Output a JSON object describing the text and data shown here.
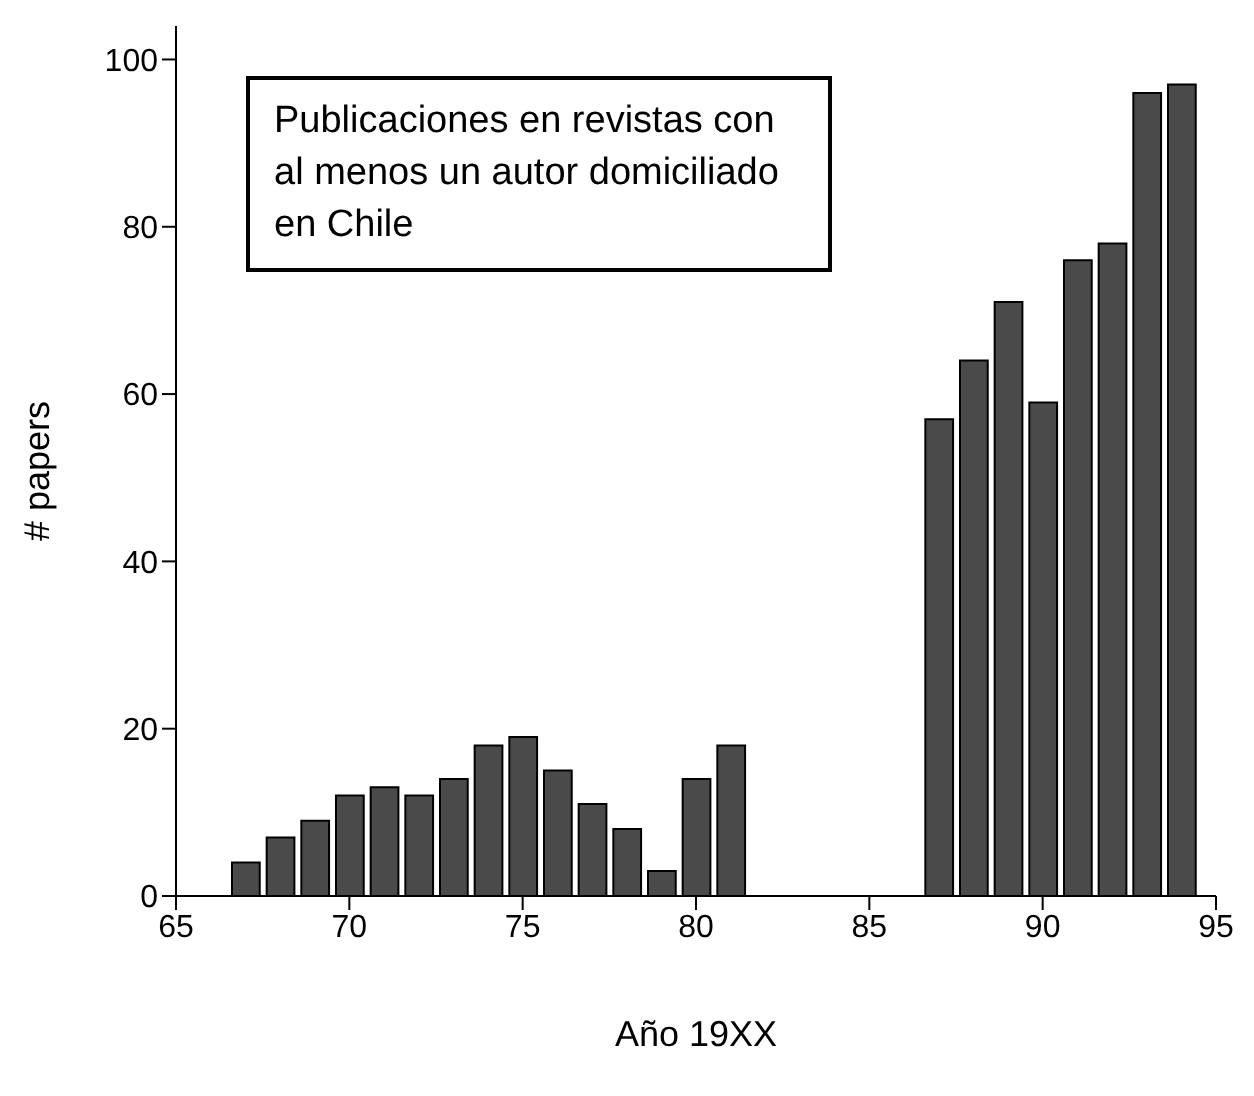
{
  "chart_data": {
    "type": "bar",
    "xlabel": "Año 19XX",
    "ylabel": "# papers",
    "annotations": [
      "Publicaciones en revistas con al menos un autor domiciliado en Chile"
    ],
    "x": [
      67,
      68,
      69,
      70,
      71,
      72,
      73,
      74,
      75,
      76,
      77,
      78,
      79,
      80,
      81,
      87,
      88,
      89,
      90,
      91,
      92,
      93,
      94
    ],
    "values": [
      4,
      7,
      9,
      12,
      13,
      12,
      14,
      18,
      19,
      15,
      11,
      8,
      3,
      14,
      18,
      57,
      64,
      71,
      59,
      76,
      78,
      96,
      97
    ],
    "color": "#4a4a4a",
    "xlim": [
      65,
      95
    ],
    "xticks": [
      65,
      70,
      75,
      80,
      85,
      90,
      95
    ],
    "ylim": [
      0,
      104
    ],
    "yticks": [
      0,
      20,
      40,
      60,
      80,
      100
    ],
    "grid": false,
    "legend": false
  }
}
